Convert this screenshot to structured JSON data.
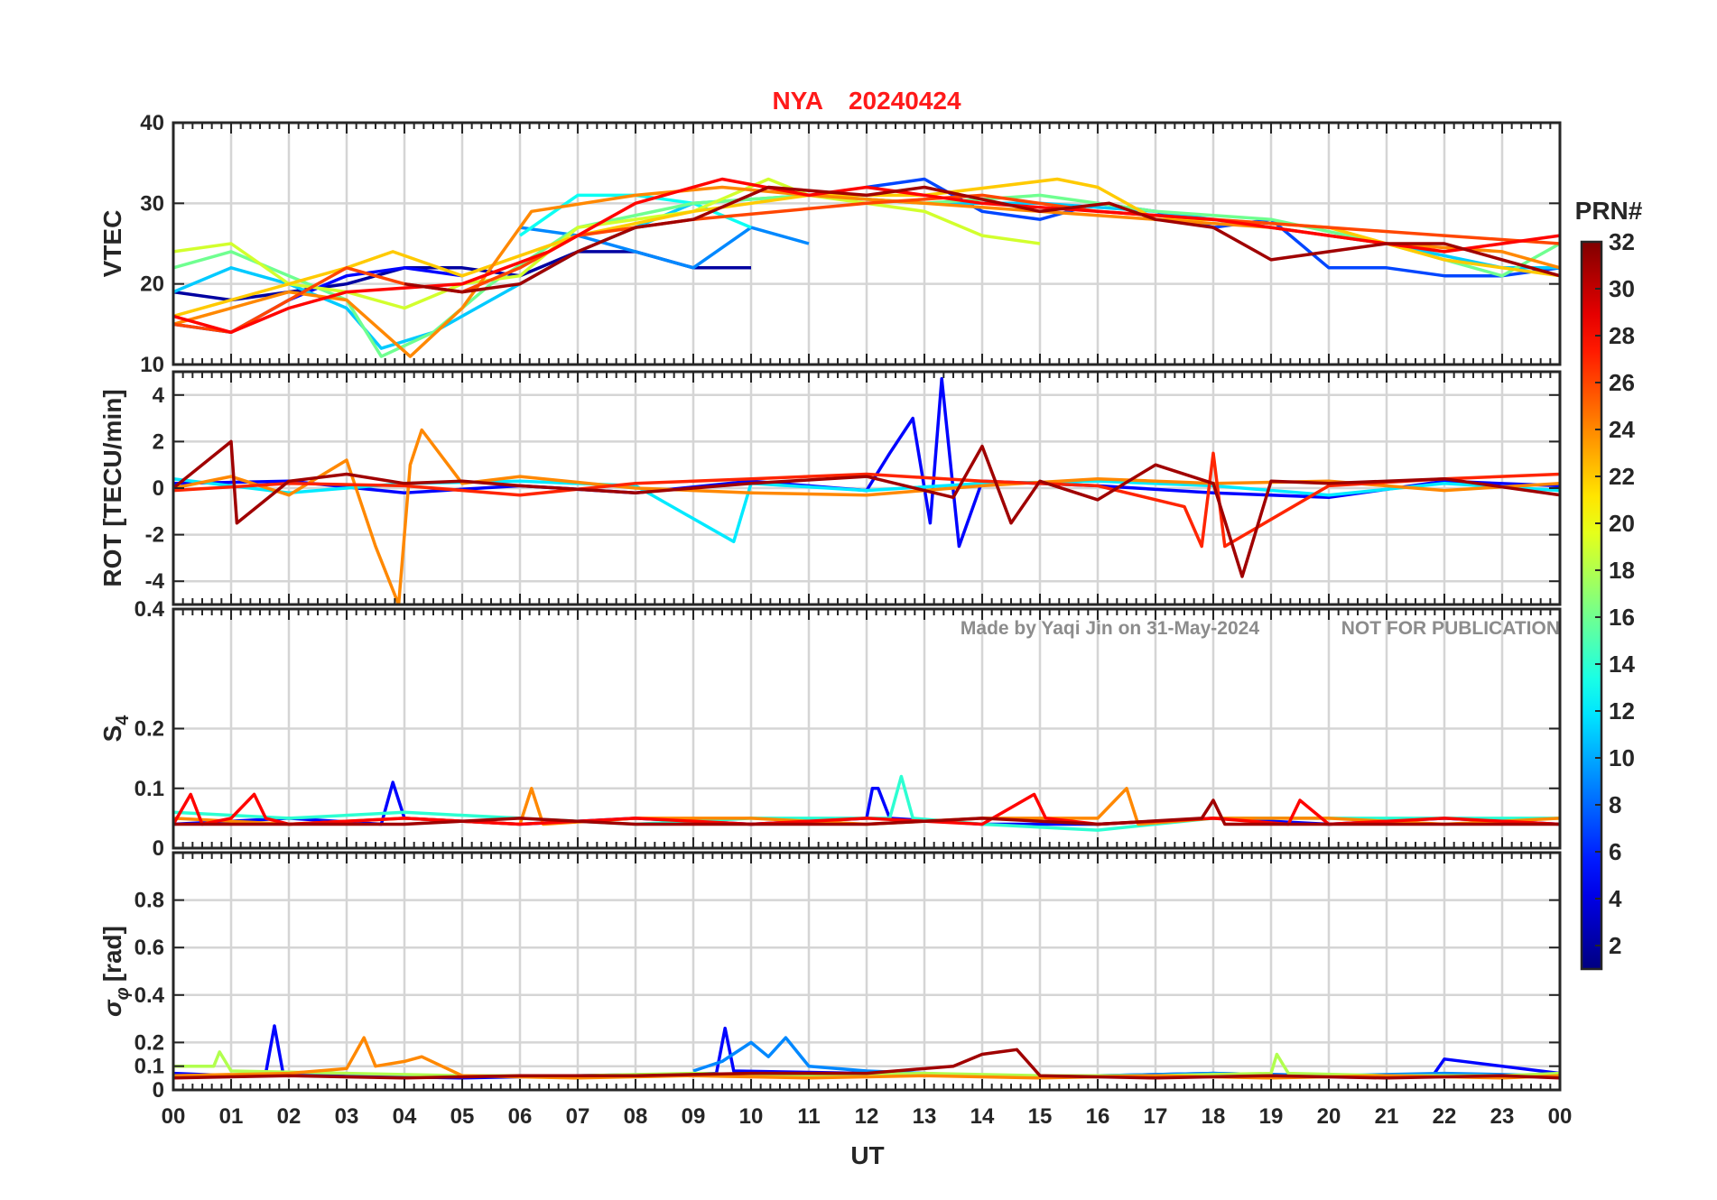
{
  "figure": {
    "title_station": "NYA",
    "title_date": "20240424",
    "title_color": "#ff1a1a",
    "watermark_author": "Made by Yaqi Jin on 31-May-2024",
    "watermark_notice": "NOT FOR PUBLICATION",
    "xlabel": "UT",
    "colorbar_label": "PRN#"
  },
  "chart_data": [
    {
      "id": "vtec",
      "type": "line",
      "ylabel": "VTEC",
      "ylim": [
        10,
        40
      ],
      "yticks": [
        10,
        20,
        30,
        40
      ],
      "xlim": [
        0,
        24
      ],
      "grid": true,
      "series": [
        {
          "prn": 2,
          "x": [
            0,
            1,
            2,
            3,
            4,
            5,
            6,
            7,
            8,
            9,
            10
          ],
          "y": [
            19,
            18,
            19,
            20,
            22,
            22,
            21,
            24,
            24,
            22,
            22
          ]
        },
        {
          "prn": 5,
          "x": [
            0,
            1,
            2,
            3,
            4,
            5
          ],
          "y": [
            15,
            14,
            18,
            21,
            22,
            21
          ]
        },
        {
          "prn": 7,
          "x": [
            12,
            13,
            14,
            15,
            16,
            17,
            18,
            19,
            20,
            21,
            22,
            23,
            24
          ],
          "y": [
            32,
            33,
            29,
            28,
            30,
            29,
            27,
            28,
            22,
            22,
            21,
            21,
            22
          ]
        },
        {
          "prn": 9,
          "x": [
            6,
            7,
            8,
            9,
            10,
            11
          ],
          "y": [
            27,
            26,
            24,
            22,
            27,
            25
          ]
        },
        {
          "prn": 11,
          "x": [
            0,
            1,
            2,
            3,
            3.6,
            4.5,
            5.5,
            7,
            9,
            11,
            13,
            15,
            17,
            19,
            21,
            23,
            24
          ],
          "y": [
            19,
            22,
            20,
            17,
            12,
            14,
            18,
            24,
            30,
            31,
            30,
            30,
            29,
            27,
            25,
            22,
            22
          ]
        },
        {
          "prn": 13,
          "x": [
            6,
            7,
            8,
            9,
            10
          ],
          "y": [
            26,
            31,
            31,
            30,
            27
          ]
        },
        {
          "prn": 16,
          "x": [
            0,
            1,
            2,
            3,
            3.6,
            4.5,
            5.5,
            7,
            9,
            11,
            13,
            15,
            17,
            19,
            21,
            23,
            24
          ],
          "y": [
            22,
            24,
            21,
            18,
            11,
            14,
            20,
            27,
            30,
            31,
            30,
            31,
            29,
            28,
            25,
            21,
            25
          ]
        },
        {
          "prn": 19,
          "x": [
            0,
            1,
            2,
            3,
            4,
            5,
            6,
            7,
            9,
            10.3,
            11,
            13,
            14,
            15
          ],
          "y": [
            24,
            25,
            20,
            19,
            17,
            20,
            21,
            27,
            29,
            33,
            31,
            29,
            26,
            25
          ]
        },
        {
          "prn": 22,
          "x": [
            0,
            1,
            2,
            3,
            3.8,
            5,
            7,
            9,
            11,
            13,
            15.3,
            16,
            17,
            18,
            20,
            22,
            24
          ],
          "y": [
            16,
            18,
            20,
            22,
            24,
            21,
            26,
            29,
            31,
            31,
            33,
            32,
            28,
            28,
            27,
            23,
            21
          ]
        },
        {
          "prn": 24,
          "x": [
            0,
            1,
            2,
            3,
            4.1,
            5,
            6.2,
            8,
            9.5,
            11,
            13,
            15,
            17,
            19,
            21,
            23,
            24
          ],
          "y": [
            15,
            17,
            19,
            18,
            11,
            17,
            29,
            31,
            32,
            31,
            30,
            29,
            28,
            27,
            25,
            24,
            22
          ]
        },
        {
          "prn": 26,
          "x": [
            0,
            1,
            2,
            3,
            4,
            5,
            6,
            7,
            9,
            12,
            14,
            16,
            18,
            20,
            22,
            24
          ],
          "y": [
            15,
            14,
            18,
            22,
            20,
            19,
            22,
            26,
            28,
            30,
            31,
            29,
            28,
            27,
            26,
            25
          ]
        },
        {
          "prn": 28,
          "x": [
            0,
            1,
            2,
            3,
            5,
            6.5,
            8,
            9.5,
            11,
            12,
            14,
            16,
            18,
            20,
            22,
            24
          ],
          "y": [
            16,
            14,
            17,
            19,
            20,
            24,
            30,
            33,
            31,
            32,
            30,
            29,
            28,
            26,
            24,
            26
          ]
        },
        {
          "prn": 31,
          "x": [
            4,
            5,
            6,
            7,
            8,
            9,
            10.3,
            12,
            13,
            15,
            16.2,
            17,
            18,
            19,
            20,
            21,
            22,
            23,
            24
          ],
          "y": [
            20,
            19,
            20,
            24,
            27,
            28,
            32,
            31,
            32,
            29,
            30,
            28,
            27,
            23,
            24,
            25,
            25,
            23,
            21
          ]
        }
      ]
    },
    {
      "id": "rot",
      "type": "line",
      "ylabel": "ROT [TECU/min]",
      "ylim": [
        -5,
        5
      ],
      "yticks": [
        -4,
        -2,
        0,
        2,
        4
      ],
      "xlim": [
        0,
        24
      ],
      "grid": true,
      "series": [
        {
          "prn": 5,
          "x": [
            0,
            2,
            4,
            6,
            8,
            10,
            12,
            12.4,
            12.8,
            13.1,
            13.3,
            13.6,
            14,
            16,
            18,
            20,
            22,
            24
          ],
          "y": [
            0.2,
            0.3,
            -0.2,
            0.1,
            -0.2,
            0.3,
            -0.1,
            1.5,
            3.0,
            -1.5,
            4.7,
            -2.5,
            0.3,
            0.1,
            -0.2,
            -0.4,
            0.3,
            0.1
          ]
        },
        {
          "prn": 12,
          "x": [
            0,
            2,
            4,
            6,
            8,
            9.7,
            10,
            12,
            14,
            16,
            18,
            20,
            22,
            24
          ],
          "y": [
            0.4,
            -0.2,
            0.2,
            0.3,
            0.1,
            -2.3,
            0.2,
            -0.1,
            0.2,
            0.3,
            0.1,
            -0.3,
            0.2,
            -0.1
          ]
        },
        {
          "prn": 24,
          "x": [
            0,
            1,
            2,
            3,
            3.5,
            3.9,
            4.1,
            4.3,
            5,
            6,
            8,
            10,
            12,
            14,
            16,
            18,
            20,
            22,
            24
          ],
          "y": [
            0,
            0.5,
            -0.3,
            1.2,
            -2.5,
            -5.0,
            1.0,
            2.5,
            0.2,
            0.5,
            0,
            -0.2,
            -0.3,
            0.1,
            0.4,
            0.2,
            0.3,
            -0.1,
            0.2
          ]
        },
        {
          "prn": 27,
          "x": [
            0,
            2,
            4,
            6,
            8,
            10,
            12,
            14,
            16,
            17.5,
            17.8,
            18,
            18.2,
            20,
            22,
            24
          ],
          "y": [
            -0.1,
            0.2,
            0.1,
            -0.3,
            0.2,
            0.4,
            0.6,
            0.3,
            0.1,
            -0.8,
            -2.5,
            1.5,
            -2.5,
            0.1,
            0.4,
            0.6
          ]
        },
        {
          "prn": 31,
          "x": [
            0,
            1,
            1.1,
            2,
            3,
            4,
            5,
            6,
            8,
            10,
            12,
            13.5,
            14,
            14.5,
            15,
            16,
            17,
            18,
            18.5,
            19,
            20,
            22,
            24
          ],
          "y": [
            0,
            2.0,
            -1.5,
            0.3,
            0.6,
            0.2,
            0.3,
            0.1,
            -0.2,
            0.2,
            0.5,
            -0.4,
            1.8,
            -1.5,
            0.3,
            -0.5,
            1.0,
            0.2,
            -3.8,
            0.3,
            0.2,
            0.4,
            -0.3
          ]
        }
      ]
    },
    {
      "id": "s4",
      "type": "line",
      "ylabel": "S4",
      "ylim": [
        0,
        0.4
      ],
      "yticks": [
        0,
        0.1,
        0.2,
        0.4
      ],
      "xlim": [
        0,
        24
      ],
      "grid": true,
      "series": [
        {
          "prn": 5,
          "x": [
            0,
            2,
            3.6,
            3.8,
            4,
            6,
            8,
            10,
            12,
            12.1,
            12.2,
            12.4,
            14,
            16,
            18,
            20,
            22,
            24
          ],
          "y": [
            0.04,
            0.05,
            0.04,
            0.11,
            0.05,
            0.04,
            0.05,
            0.04,
            0.05,
            0.1,
            0.1,
            0.05,
            0.04,
            0.04,
            0.05,
            0.04,
            0.05,
            0.04
          ]
        },
        {
          "prn": 14,
          "x": [
            0,
            2,
            4,
            6,
            8,
            10,
            12.4,
            12.6,
            12.8,
            14,
            16,
            18,
            20,
            22,
            24
          ],
          "y": [
            0.06,
            0.05,
            0.06,
            0.05,
            0.04,
            0.05,
            0.05,
            0.12,
            0.05,
            0.04,
            0.03,
            0.05,
            0.05,
            0.05,
            0.05
          ]
        },
        {
          "prn": 24,
          "x": [
            0,
            2,
            4,
            6,
            6.2,
            6.4,
            8,
            10,
            12,
            14,
            16,
            16.5,
            16.7,
            18,
            20,
            22,
            24
          ],
          "y": [
            0.05,
            0.04,
            0.05,
            0.04,
            0.1,
            0.04,
            0.05,
            0.05,
            0.04,
            0.05,
            0.05,
            0.1,
            0.04,
            0.05,
            0.05,
            0.04,
            0.05
          ]
        },
        {
          "prn": 28,
          "x": [
            0,
            0.3,
            0.5,
            1,
            1.4,
            1.6,
            2,
            4,
            6,
            8,
            10,
            12,
            14,
            14.9,
            15.1,
            16,
            18,
            19.3,
            19.5,
            20,
            22,
            24
          ],
          "y": [
            0.04,
            0.09,
            0.04,
            0.05,
            0.09,
            0.05,
            0.04,
            0.05,
            0.04,
            0.05,
            0.04,
            0.05,
            0.04,
            0.09,
            0.05,
            0.04,
            0.05,
            0.04,
            0.08,
            0.04,
            0.05,
            0.04
          ]
        },
        {
          "prn": 31,
          "x": [
            0,
            2,
            4,
            6,
            8,
            10,
            12,
            14,
            16,
            17.8,
            18,
            18.2,
            20,
            22,
            24
          ],
          "y": [
            0.04,
            0.04,
            0.04,
            0.05,
            0.04,
            0.04,
            0.04,
            0.05,
            0.04,
            0.05,
            0.08,
            0.04,
            0.04,
            0.04,
            0.04
          ]
        }
      ]
    },
    {
      "id": "sigma_phi",
      "type": "line",
      "ylabel": "σ φ [rad]",
      "ylim": [
        0,
        1
      ],
      "yticks": [
        0,
        0.1,
        0.2,
        0.4,
        0.6,
        0.8
      ],
      "xlim": [
        0,
        24
      ],
      "grid": true,
      "series": [
        {
          "prn": 5,
          "x": [
            0,
            1,
            1.6,
            1.75,
            1.9,
            3,
            5,
            7,
            9.4,
            9.55,
            9.7,
            12,
            14,
            16,
            18,
            20,
            21.8,
            22,
            24
          ],
          "y": [
            0.07,
            0.06,
            0.07,
            0.27,
            0.07,
            0.06,
            0.05,
            0.06,
            0.07,
            0.26,
            0.08,
            0.07,
            0.06,
            0.06,
            0.07,
            0.06,
            0.06,
            0.13,
            0.07
          ]
        },
        {
          "prn": 9,
          "x": [
            9,
            9.5,
            10,
            10.3,
            10.6,
            11,
            12,
            14,
            16,
            18,
            20,
            22,
            24
          ],
          "y": [
            0.08,
            0.12,
            0.2,
            0.14,
            0.22,
            0.1,
            0.08,
            0.06,
            0.06,
            0.07,
            0.06,
            0.07,
            0.06
          ]
        },
        {
          "prn": 18,
          "x": [
            0,
            0.7,
            0.8,
            1,
            3,
            5,
            7,
            9,
            11,
            13,
            15,
            17,
            19,
            19.1,
            19.3,
            21,
            23,
            24
          ],
          "y": [
            0.1,
            0.1,
            0.16,
            0.08,
            0.07,
            0.06,
            0.06,
            0.07,
            0.06,
            0.07,
            0.06,
            0.06,
            0.07,
            0.15,
            0.07,
            0.06,
            0.06,
            0.07
          ]
        },
        {
          "prn": 24,
          "x": [
            0,
            2,
            3,
            3.3,
            3.5,
            4,
            4.3,
            5,
            7,
            9,
            11,
            13,
            15,
            17,
            19,
            21,
            23,
            24
          ],
          "y": [
            0.06,
            0.07,
            0.09,
            0.22,
            0.1,
            0.12,
            0.14,
            0.06,
            0.05,
            0.06,
            0.05,
            0.06,
            0.05,
            0.06,
            0.05,
            0.06,
            0.05,
            0.06
          ]
        },
        {
          "prn": 31,
          "x": [
            0,
            2,
            4,
            6,
            8,
            10,
            12,
            13.5,
            14,
            14.3,
            14.6,
            15,
            17,
            19,
            21,
            23,
            24
          ],
          "y": [
            0.05,
            0.06,
            0.05,
            0.06,
            0.06,
            0.07,
            0.07,
            0.1,
            0.15,
            0.16,
            0.17,
            0.06,
            0.05,
            0.06,
            0.05,
            0.06,
            0.05
          ]
        }
      ]
    }
  ],
  "x_axis": {
    "ticks": [
      0,
      1,
      2,
      3,
      4,
      5,
      6,
      7,
      8,
      9,
      10,
      11,
      12,
      13,
      14,
      15,
      16,
      17,
      18,
      19,
      20,
      21,
      22,
      23,
      24
    ],
    "tick_labels": [
      "00",
      "01",
      "02",
      "03",
      "04",
      "05",
      "06",
      "07",
      "08",
      "09",
      "10",
      "11",
      "12",
      "13",
      "14",
      "15",
      "16",
      "17",
      "18",
      "19",
      "20",
      "21",
      "22",
      "23",
      "00"
    ]
  },
  "colorbar": {
    "range": [
      1,
      32
    ],
    "ticks": [
      2,
      4,
      6,
      8,
      10,
      12,
      14,
      16,
      18,
      20,
      22,
      24,
      26,
      28,
      30,
      32
    ],
    "colormap": "jet"
  }
}
